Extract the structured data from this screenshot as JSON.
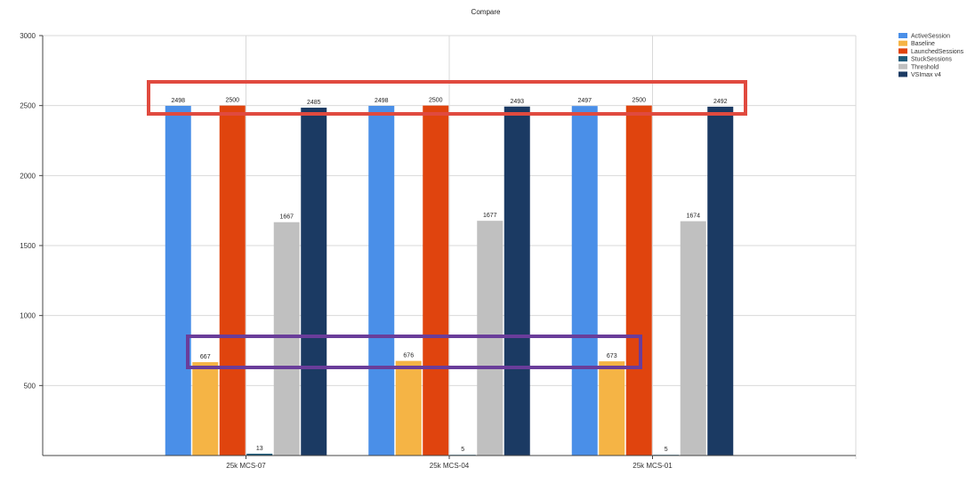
{
  "chart_data": {
    "type": "bar",
    "title": "Compare",
    "xlabel": "",
    "ylabel": "",
    "ylim": [
      0,
      3000
    ],
    "y_ticks": [
      "500",
      "1000",
      "1500",
      "2000",
      "2500",
      "3000"
    ],
    "grid": true,
    "legend_position": "top-right",
    "categories": [
      "25k MCS-07",
      "25k MCS-04",
      "25k MCS-01"
    ],
    "series": [
      {
        "name": "ActiveSession",
        "color": "#4a8fe8",
        "values": [
          2498,
          2498,
          2497
        ],
        "labels": [
          "2498",
          "2498",
          "2497"
        ]
      },
      {
        "name": "Baseline",
        "color": "#f5b445",
        "values": [
          667,
          676,
          673
        ],
        "labels": [
          "667",
          "676",
          "673"
        ]
      },
      {
        "name": "LaunchedSessions",
        "color": "#e0440e",
        "values": [
          2500,
          2500,
          2500
        ],
        "labels": [
          "2500",
          "2500",
          "2500"
        ]
      },
      {
        "name": "StuckSessions",
        "color": "#1e5b7a",
        "values": [
          13,
          5,
          5
        ],
        "labels": [
          "13",
          "5",
          "5"
        ]
      },
      {
        "name": "Threshold",
        "color": "#c0c0c0",
        "values": [
          1667,
          1677,
          1674
        ],
        "labels": [
          "1667",
          "1677",
          "1674"
        ]
      },
      {
        "name": "VSImax v4",
        "color": "#1b3a63",
        "values": [
          2485,
          2493,
          2492
        ],
        "labels": [
          "2485",
          "2493",
          "2492"
        ]
      }
    ],
    "annotations": [
      {
        "name": "red-highlight-box",
        "color": "#e04a3f"
      },
      {
        "name": "purple-highlight-box",
        "color": "#6a3d9a"
      }
    ]
  }
}
